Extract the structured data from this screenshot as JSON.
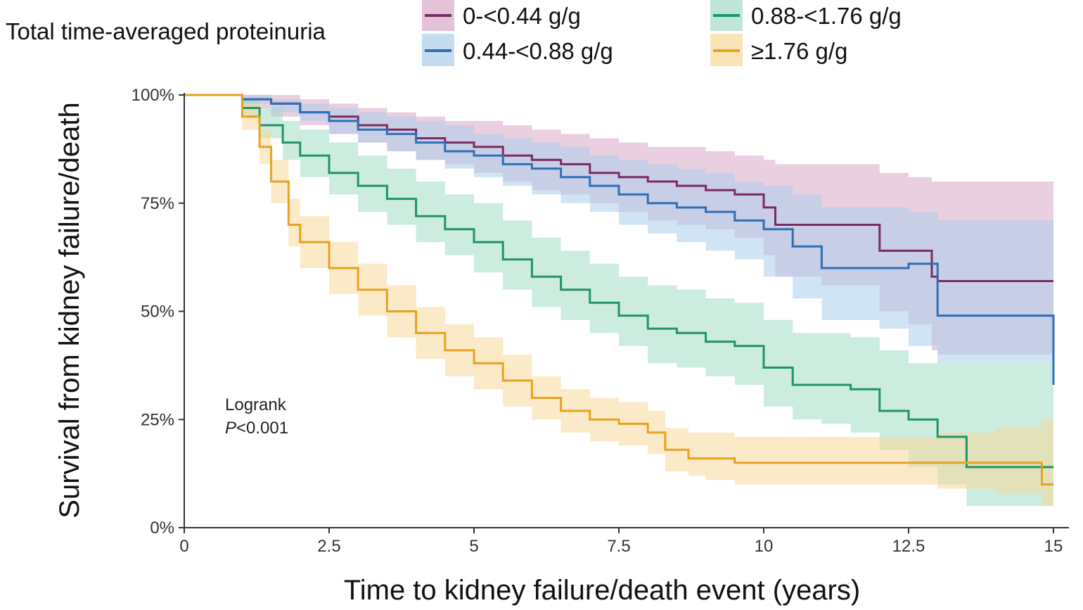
{
  "chart_data": {
    "type": "line",
    "step": true,
    "title": "",
    "xlabel": "Time to kidney failure/death event (years)",
    "ylabel": "Survival from kidney failure/death",
    "xlim": [
      0,
      15
    ],
    "ylim": [
      0,
      1
    ],
    "xticks": [
      0,
      2.5,
      5,
      7.5,
      10,
      12.5,
      15
    ],
    "xtick_labels": [
      "0",
      "2.5",
      "5",
      "7.5",
      "10",
      "12.5",
      "15"
    ],
    "yticks": [
      0,
      0.25,
      0.5,
      0.75,
      1
    ],
    "ytick_labels": [
      "0%",
      "25%",
      "50%",
      "75%",
      "100%"
    ],
    "grid": false,
    "legend": {
      "title": "Total time-averaged proteinuria",
      "position": "top"
    },
    "annotation": {
      "line1": "Logrank",
      "p_italic": "P",
      "p_rest": "<0.001"
    },
    "series": [
      {
        "name": "0-<0.44 g/g",
        "color": "#7b2a63",
        "band_color": "#d9a8c8",
        "x": [
          0,
          0.7,
          1.0,
          1.5,
          2.0,
          2.5,
          3.0,
          3.5,
          4.0,
          4.5,
          5.0,
          5.5,
          6.0,
          6.5,
          7.0,
          7.5,
          8.0,
          8.5,
          9.0,
          9.5,
          10.0,
          10.2,
          11.0,
          12.0,
          12.5,
          12.9,
          13.0,
          15.0
        ],
        "y": [
          1.0,
          1.0,
          0.99,
          0.98,
          0.96,
          0.95,
          0.93,
          0.92,
          0.9,
          0.89,
          0.88,
          0.86,
          0.85,
          0.84,
          0.82,
          0.81,
          0.8,
          0.79,
          0.78,
          0.77,
          0.74,
          0.7,
          0.7,
          0.64,
          0.64,
          0.58,
          0.57,
          0.57
        ],
        "upper": [
          1.0,
          1.0,
          1.0,
          1.0,
          0.99,
          0.98,
          0.97,
          0.96,
          0.95,
          0.94,
          0.94,
          0.93,
          0.92,
          0.91,
          0.9,
          0.89,
          0.88,
          0.88,
          0.87,
          0.86,
          0.85,
          0.84,
          0.84,
          0.82,
          0.81,
          0.8,
          0.8,
          0.8
        ],
        "lower": [
          1.0,
          1.0,
          0.97,
          0.95,
          0.93,
          0.91,
          0.89,
          0.87,
          0.85,
          0.84,
          0.82,
          0.8,
          0.78,
          0.77,
          0.75,
          0.73,
          0.71,
          0.7,
          0.69,
          0.67,
          0.63,
          0.58,
          0.56,
          0.5,
          0.47,
          0.41,
          0.4,
          0.4
        ]
      },
      {
        "name": "0.44-<0.88 g/g",
        "color": "#2f6fb6",
        "band_color": "#a9cde9",
        "x": [
          0,
          0.7,
          1.0,
          1.5,
          2.0,
          2.5,
          3.0,
          3.5,
          4.0,
          4.5,
          5.0,
          5.5,
          6.0,
          6.5,
          7.0,
          7.5,
          8.0,
          8.5,
          9.0,
          9.5,
          10.0,
          10.5,
          11.0,
          12.0,
          12.5,
          13.0,
          15.0
        ],
        "y": [
          1.0,
          1.0,
          0.99,
          0.98,
          0.96,
          0.94,
          0.92,
          0.91,
          0.89,
          0.87,
          0.86,
          0.84,
          0.83,
          0.81,
          0.79,
          0.77,
          0.75,
          0.74,
          0.73,
          0.71,
          0.69,
          0.65,
          0.6,
          0.6,
          0.61,
          0.49,
          0.33
        ],
        "upper": [
          1.0,
          1.0,
          1.0,
          0.99,
          0.98,
          0.97,
          0.96,
          0.95,
          0.94,
          0.93,
          0.91,
          0.9,
          0.89,
          0.88,
          0.86,
          0.85,
          0.84,
          0.83,
          0.82,
          0.8,
          0.79,
          0.77,
          0.74,
          0.74,
          0.73,
          0.71,
          0.71
        ],
        "lower": [
          1.0,
          1.0,
          0.98,
          0.96,
          0.94,
          0.91,
          0.89,
          0.87,
          0.85,
          0.83,
          0.81,
          0.79,
          0.77,
          0.75,
          0.73,
          0.7,
          0.68,
          0.66,
          0.64,
          0.62,
          0.58,
          0.53,
          0.48,
          0.46,
          0.42,
          0.38,
          0.38
        ]
      },
      {
        "name": "0.88-<1.76 g/g",
        "color": "#1f9467",
        "band_color": "#a3dcc7",
        "x": [
          0,
          0.7,
          1.0,
          1.3,
          1.7,
          2.0,
          2.5,
          3.0,
          3.5,
          4.0,
          4.5,
          5.0,
          5.5,
          6.0,
          6.5,
          7.0,
          7.5,
          8.0,
          8.5,
          9.0,
          9.5,
          10.0,
          10.5,
          11.0,
          11.5,
          12.0,
          12.5,
          13.0,
          13.5,
          15.0
        ],
        "y": [
          1.0,
          1.0,
          0.97,
          0.93,
          0.89,
          0.86,
          0.82,
          0.79,
          0.76,
          0.72,
          0.69,
          0.66,
          0.62,
          0.58,
          0.55,
          0.52,
          0.49,
          0.46,
          0.45,
          0.43,
          0.42,
          0.37,
          0.33,
          0.33,
          0.32,
          0.27,
          0.25,
          0.21,
          0.14,
          0.14
        ],
        "upper": [
          1.0,
          1.0,
          0.99,
          0.97,
          0.94,
          0.92,
          0.89,
          0.86,
          0.83,
          0.8,
          0.77,
          0.75,
          0.71,
          0.67,
          0.64,
          0.61,
          0.58,
          0.56,
          0.55,
          0.53,
          0.52,
          0.48,
          0.45,
          0.45,
          0.44,
          0.41,
          0.38,
          0.38,
          0.38,
          0.38
        ],
        "lower": [
          1.0,
          1.0,
          0.95,
          0.9,
          0.85,
          0.81,
          0.77,
          0.73,
          0.7,
          0.66,
          0.63,
          0.59,
          0.55,
          0.51,
          0.48,
          0.45,
          0.42,
          0.38,
          0.37,
          0.35,
          0.33,
          0.28,
          0.25,
          0.24,
          0.22,
          0.18,
          0.14,
          0.1,
          0.05,
          0.05
        ]
      },
      {
        "name": "≥1.76 g/g",
        "color": "#e8a21f",
        "band_color": "#f6d99a",
        "x": [
          0,
          0.7,
          1.0,
          1.3,
          1.5,
          1.8,
          2.0,
          2.5,
          3.0,
          3.5,
          4.0,
          4.5,
          5.0,
          5.5,
          6.0,
          6.5,
          7.0,
          7.5,
          8.0,
          8.3,
          8.7,
          9.0,
          9.5,
          10.0,
          11.0,
          12.0,
          13.0,
          14.0,
          14.8,
          15.0
        ],
        "y": [
          1.0,
          1.0,
          0.95,
          0.88,
          0.8,
          0.7,
          0.66,
          0.6,
          0.55,
          0.5,
          0.45,
          0.41,
          0.38,
          0.34,
          0.3,
          0.27,
          0.25,
          0.24,
          0.22,
          0.18,
          0.16,
          0.16,
          0.15,
          0.15,
          0.15,
          0.15,
          0.15,
          0.15,
          0.1,
          0.1
        ],
        "upper": [
          1.0,
          1.0,
          0.98,
          0.92,
          0.85,
          0.76,
          0.72,
          0.66,
          0.61,
          0.56,
          0.51,
          0.47,
          0.44,
          0.4,
          0.35,
          0.32,
          0.3,
          0.29,
          0.27,
          0.23,
          0.22,
          0.22,
          0.21,
          0.21,
          0.21,
          0.21,
          0.22,
          0.23,
          0.25,
          0.25
        ],
        "lower": [
          1.0,
          1.0,
          0.92,
          0.84,
          0.75,
          0.65,
          0.6,
          0.54,
          0.49,
          0.44,
          0.39,
          0.35,
          0.32,
          0.28,
          0.25,
          0.22,
          0.2,
          0.19,
          0.17,
          0.13,
          0.12,
          0.11,
          0.1,
          0.1,
          0.1,
          0.1,
          0.09,
          0.08,
          0.05,
          0.05
        ]
      }
    ]
  }
}
